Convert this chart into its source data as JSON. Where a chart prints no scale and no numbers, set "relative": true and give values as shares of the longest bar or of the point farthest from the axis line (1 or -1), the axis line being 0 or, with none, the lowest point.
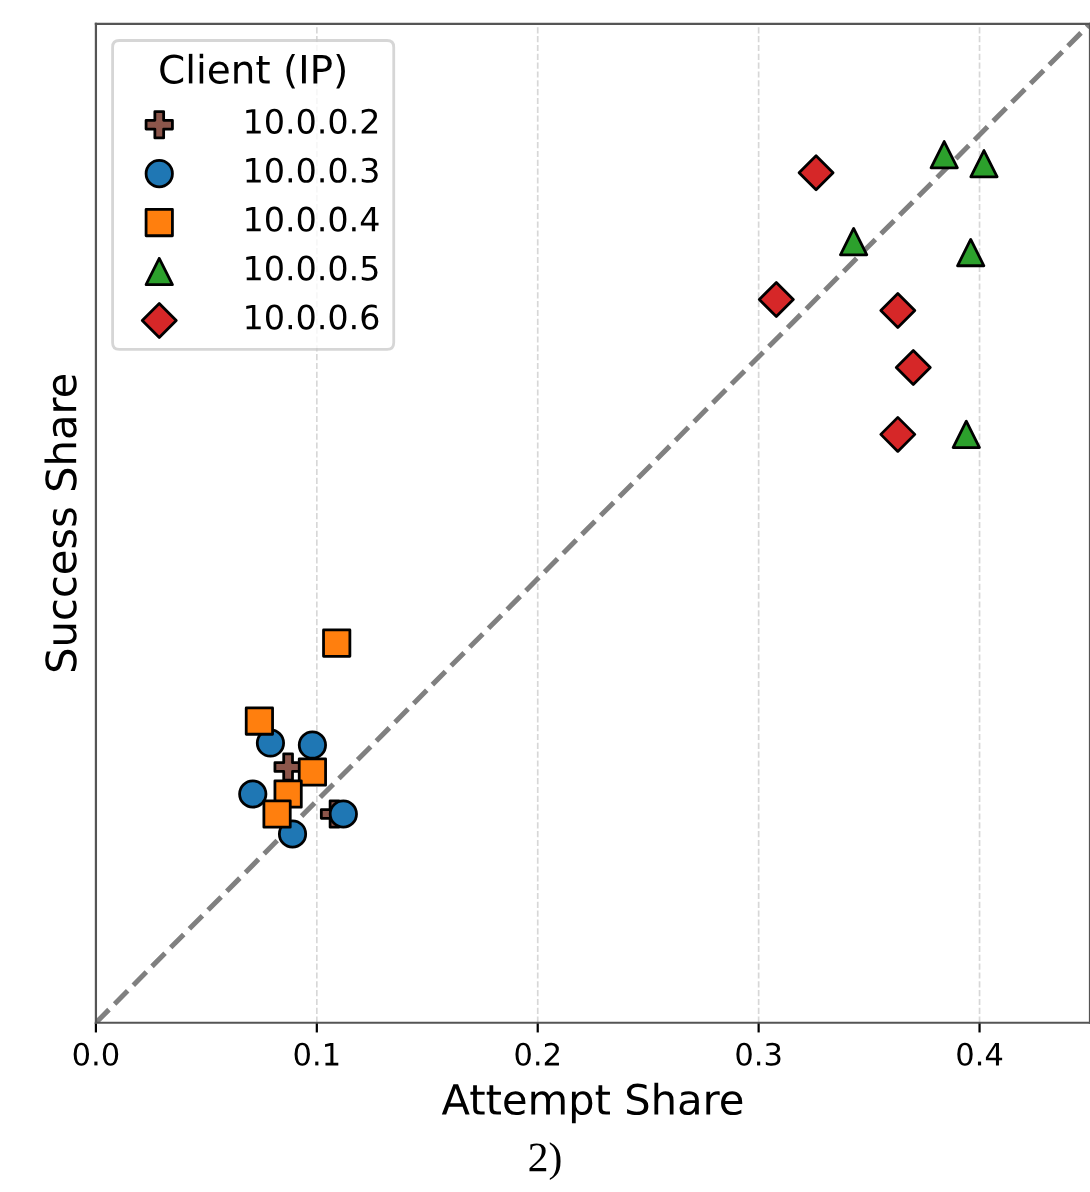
{
  "chart_data": {
    "type": "scatter",
    "xlabel": "Attempt Share",
    "ylabel": "Success Share",
    "legend_title": "Client (IP)",
    "legend": "top left",
    "grid": "x",
    "relative": true,
    "xlim": [
      0,
      0.45
    ],
    "xticks": [
      {
        "value": 0,
        "label": "0.0"
      },
      0.1,
      0.2,
      0.3,
      0.4
    ],
    "annotations": [
      "2)"
    ],
    "series": [
      {
        "name": "10.0.0.2",
        "color": "#8c564b",
        "marker": "cross",
        "x": [
          0.087,
          0.108
        ],
        "values": [
          0.256,
          0.209
        ]
      },
      {
        "name": "10.0.0.3",
        "color": "#1f77b4",
        "marker": "circle",
        "x": [
          0.079,
          0.098,
          0.071,
          0.089,
          0.112
        ],
        "values": [
          0.28,
          0.278,
          0.229,
          0.189,
          0.209
        ]
      },
      {
        "name": "10.0.0.4",
        "color": "#ff7f0e",
        "marker": "square",
        "x": [
          0.109,
          0.074,
          0.098,
          0.087,
          0.082
        ],
        "values": [
          0.38,
          0.302,
          0.251,
          0.229,
          0.209
        ]
      },
      {
        "name": "10.0.0.5",
        "color": "#2ca02c",
        "marker": "triangle",
        "x": [
          0.384,
          0.402,
          0.343,
          0.396,
          0.394
        ],
        "values": [
          0.869,
          0.86,
          0.782,
          0.771,
          0.589
        ]
      },
      {
        "name": "10.0.0.6",
        "color": "#d62728",
        "marker": "diamond",
        "x": [
          0.326,
          0.308,
          0.363,
          0.37,
          0.363
        ],
        "values": [
          0.851,
          0.724,
          0.713,
          0.656,
          0.589
        ]
      },
      {
        "type": "line",
        "color": "#808080",
        "line_style": "dashed",
        "marker": "none",
        "x": [
          0,
          0.45
        ],
        "values": [
          0,
          1
        ]
      }
    ]
  }
}
